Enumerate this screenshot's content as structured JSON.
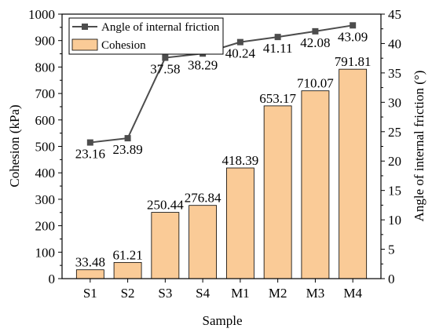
{
  "chart_data": {
    "type": "bar+line",
    "categories": [
      "S1",
      "S2",
      "S3",
      "S4",
      "M1",
      "M2",
      "M3",
      "M4"
    ],
    "xlabel": "Sample",
    "ylabel_left": "Cohesion (kPa)",
    "ylabel_right": "Angle of internal friction (°)",
    "ylim_left": [
      0,
      1000
    ],
    "yticks_left": [
      0,
      100,
      200,
      300,
      400,
      500,
      600,
      700,
      800,
      900,
      1000
    ],
    "ylim_right": [
      0,
      45
    ],
    "yticks_right": [
      0,
      5,
      10,
      15,
      20,
      25,
      30,
      35,
      40,
      45
    ],
    "grid": false,
    "legend_placement": "top-left",
    "series": [
      {
        "name": "Cohesion",
        "type": "bar",
        "axis": "left",
        "color": "#FACB97",
        "edge_color": "#000000",
        "values": [
          33.48,
          61.21,
          250.44,
          276.84,
          418.39,
          653.17,
          710.07,
          791.81
        ],
        "labels": [
          "33.48",
          "61.21",
          "250.44",
          "276.84",
          "418.39",
          "653.17",
          "710.07",
          "791.81"
        ]
      },
      {
        "name": "Angle of internal friction",
        "type": "line",
        "axis": "right",
        "color": "#4D4D4D",
        "marker": "square",
        "values": [
          23.16,
          23.89,
          37.58,
          38.29,
          40.24,
          41.11,
          42.08,
          43.09
        ],
        "labels": [
          "23.16",
          "23.89",
          "37.58",
          "38.29",
          "40.24",
          "41.11",
          "42.08",
          "43.09"
        ]
      }
    ]
  }
}
